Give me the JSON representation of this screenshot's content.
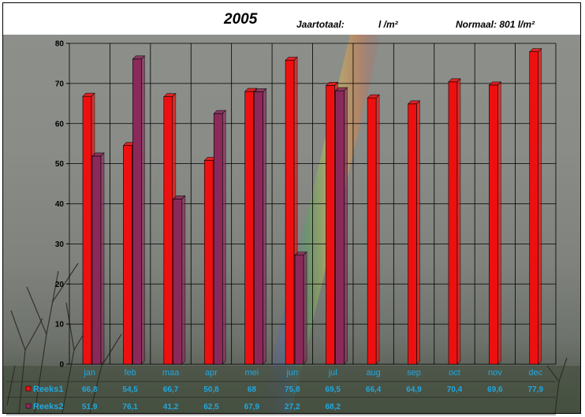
{
  "header": {
    "title": "2005",
    "jaartotaal_label": "Jaartotaal:",
    "jaartotaal_unit": "l /m²",
    "normaal_label": "Normaal: 801 l/m²"
  },
  "colors": {
    "series1": "#ee1010",
    "series2": "#8b2a5a",
    "label_text": "#1fa8e0"
  },
  "chart_data": {
    "type": "bar",
    "title": "2005",
    "categories": [
      "jan",
      "feb",
      "maa",
      "apr",
      "mei",
      "jun",
      "jul",
      "aug",
      "sep",
      "oct",
      "nov",
      "dec"
    ],
    "ylim": [
      0,
      80
    ],
    "yticks": [
      "0",
      "10",
      "20",
      "30",
      "40",
      "50",
      "60",
      "70",
      "80"
    ],
    "grid": true,
    "legend": "data-table-left",
    "series": [
      {
        "name": "Reeks1",
        "values": [
          66.8,
          54.5,
          66.7,
          50.8,
          68,
          75.8,
          69.5,
          66.4,
          64.9,
          70.4,
          69.6,
          77.9
        ],
        "labels": [
          "66,8",
          "54,5",
          "66,7",
          "50,8",
          "68",
          "75,8",
          "69,5",
          "66,4",
          "64,9",
          "70,4",
          "69,6",
          "77,9"
        ]
      },
      {
        "name": "Reeks2",
        "values": [
          51.9,
          76.1,
          41.2,
          62.5,
          67.9,
          27.2,
          68.2,
          null,
          null,
          null,
          null,
          null
        ],
        "labels": [
          "51,9",
          "76,1",
          "41,2",
          "62,5",
          "67,9",
          "27,2",
          "68,2",
          "",
          "",
          "",
          "",
          ""
        ]
      }
    ]
  }
}
